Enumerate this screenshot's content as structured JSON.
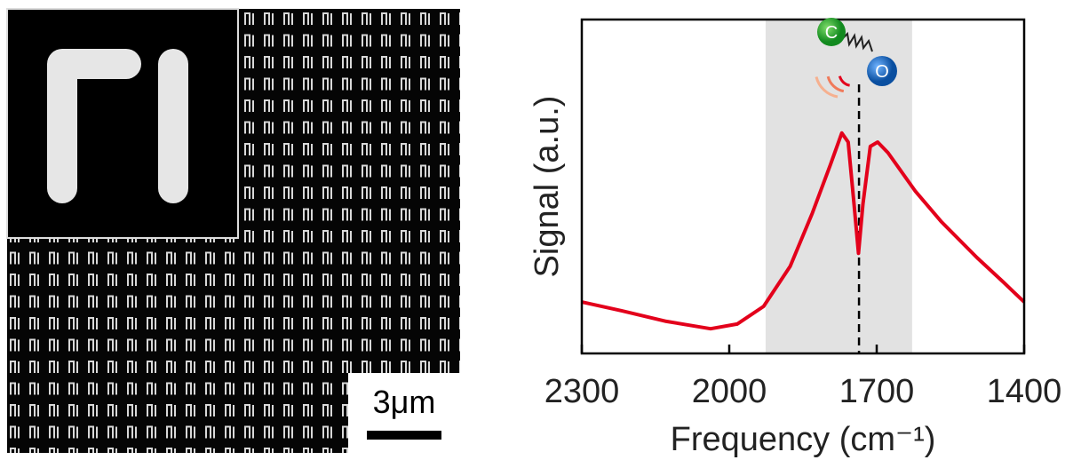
{
  "image_panel": {
    "scale_bar": "3μm"
  },
  "chart_data": {
    "type": "line",
    "xlabel": "Frequency (cm⁻¹)",
    "ylabel": "Signal (a.u.)",
    "xlim": [
      2300,
      1400
    ],
    "xticks": [
      2300,
      2000,
      1700,
      1400
    ],
    "ylim": [
      0,
      1
    ],
    "x": [
      2300,
      2219,
      2128,
      2038,
      1984,
      1930,
      1876,
      1831,
      1794,
      1771,
      1758,
      1746,
      1737,
      1728,
      1713,
      1698,
      1677,
      1622,
      1568,
      1496,
      1442,
      1400
    ],
    "values": [
      0.154,
      0.128,
      0.096,
      0.074,
      0.088,
      0.141,
      0.261,
      0.42,
      0.566,
      0.66,
      0.633,
      0.447,
      0.3,
      0.447,
      0.62,
      0.633,
      0.601,
      0.487,
      0.394,
      0.287,
      0.213,
      0.154
    ],
    "color": "#e3001b",
    "shaded_region": [
      1926,
      1628
    ],
    "marker_line": 1736,
    "molecule_labels": [
      "C",
      "O"
    ]
  }
}
